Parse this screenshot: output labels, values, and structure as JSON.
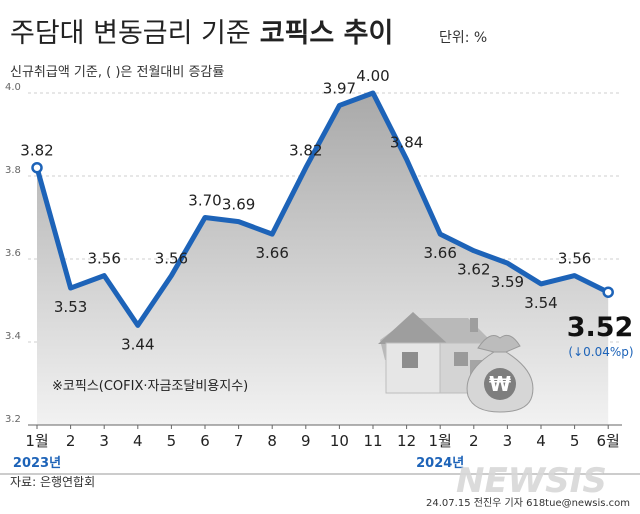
{
  "title_plain": "주담대 변동금리 기준",
  "title_bold": "코픽스 추이",
  "unit": "단위: %",
  "subtitle": "신규취급액 기준, ( )은 전월대비 증감률",
  "latest": {
    "value": "3.52",
    "change": "(↓0.04%p)"
  },
  "footnote": "※코픽스(COFIX·자금조달비용지수)",
  "source": "자료: 은행연합회",
  "credit": "24.07.15 전진우 기자 618tue@newsis.com",
  "watermark": "NEWSIS",
  "colors": {
    "line": "#1d63b8",
    "marker_fill": "#ffffff",
    "area_top": "#a9a9a9",
    "area_bottom": "#f2f2f2",
    "year_label": "#1d63b8",
    "title": "#222222",
    "down_arrow": "#1d63b8"
  },
  "icons": [
    "house-icon",
    "money-bag-icon",
    "won-sign-icon",
    "down-arrow-icon"
  ],
  "chart_data": {
    "type": "area",
    "title": "주담대 변동금리 기준 코픽스 추이",
    "ylabel": "단위: %",
    "xlabel": "",
    "ylim": [
      3.2,
      4.0
    ],
    "yticks": [
      "3.2",
      "3.4",
      "3.6",
      "3.8",
      "4.0"
    ],
    "grid": true,
    "categories": [
      "1월",
      "2",
      "3",
      "4",
      "5",
      "6",
      "7",
      "8",
      "9",
      "10",
      "11",
      "12",
      "1월",
      "2",
      "3",
      "4",
      "5",
      "6월"
    ],
    "year_labels": [
      {
        "index": 0,
        "text": "2023년"
      },
      {
        "index": 12,
        "text": "2024년"
      }
    ],
    "values": [
      3.82,
      3.53,
      3.56,
      3.44,
      3.56,
      3.7,
      3.69,
      3.66,
      3.82,
      3.97,
      4.0,
      3.84,
      3.66,
      3.62,
      3.59,
      3.54,
      3.56,
      3.52
    ],
    "labels": [
      "3.82",
      "3.53",
      "3.56",
      "3.44",
      "3.56",
      "3.70",
      "3.69",
      "3.66",
      "3.82",
      "3.97",
      "4.00",
      "3.84",
      "3.66",
      "3.62",
      "3.59",
      "3.54",
      "3.56",
      ""
    ]
  }
}
